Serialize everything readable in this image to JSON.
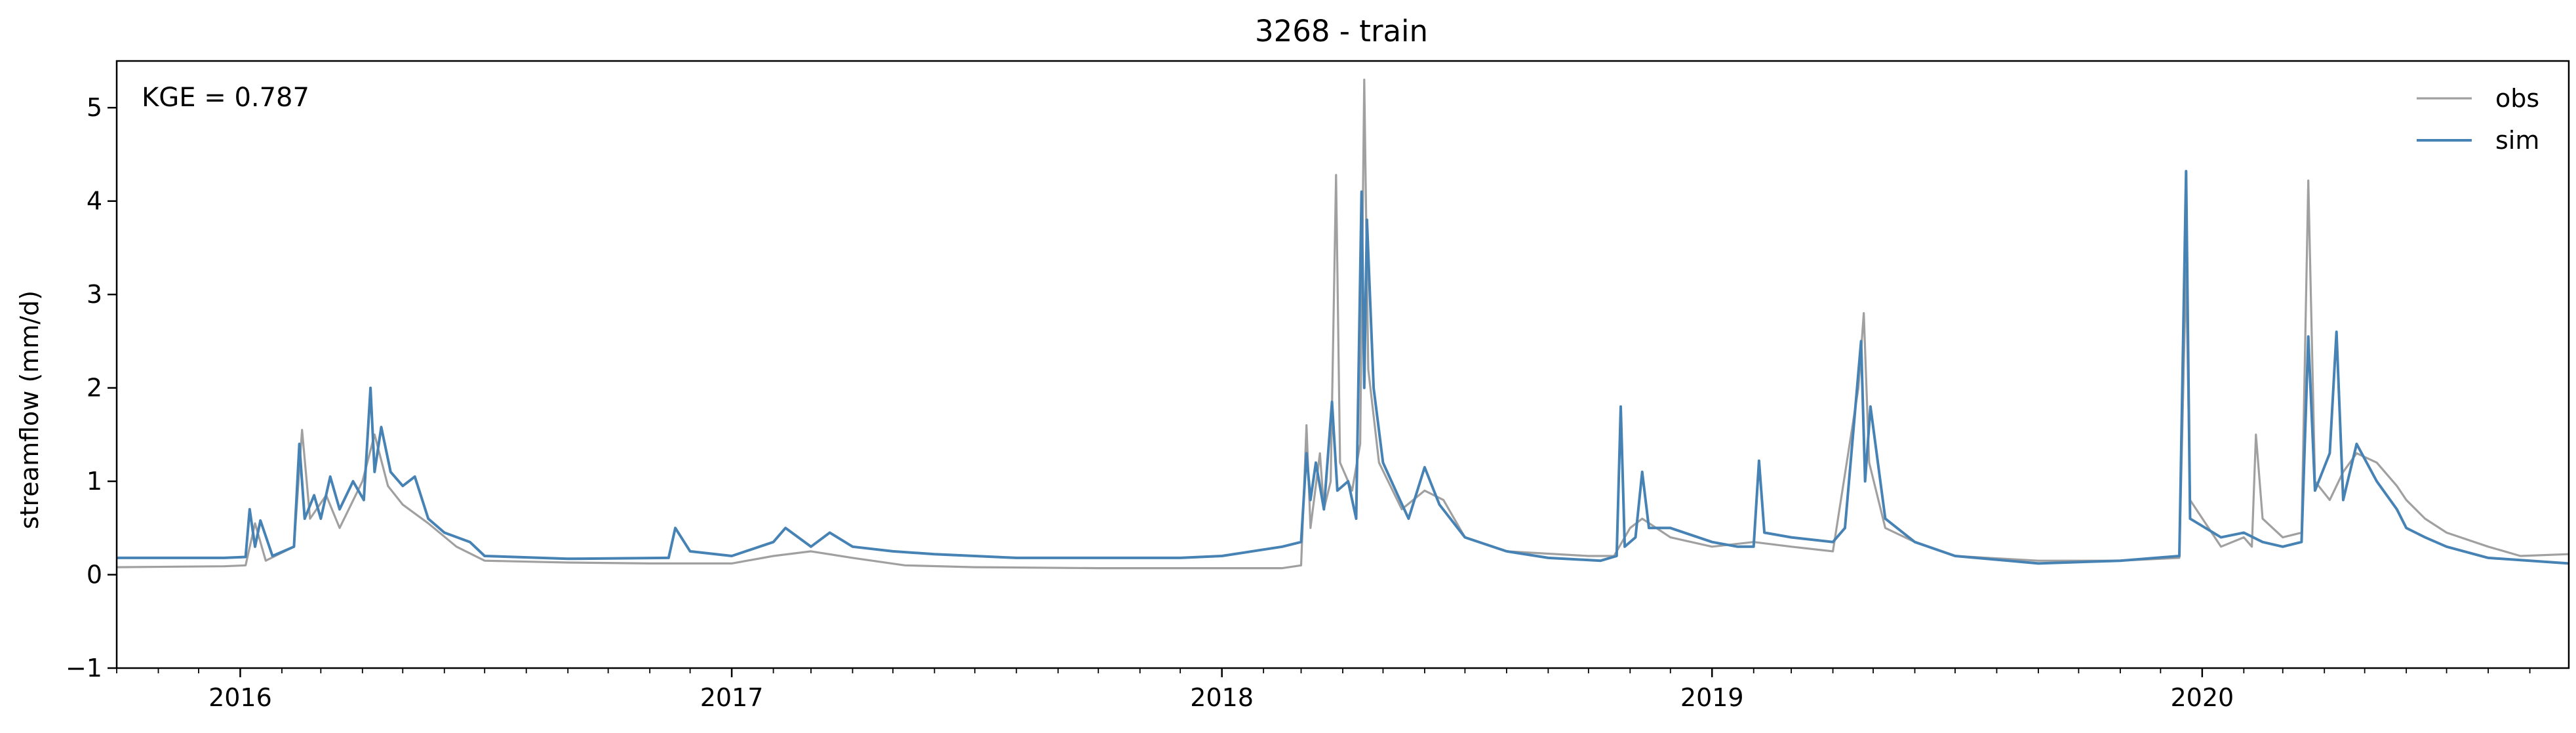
{
  "chart_data": {
    "type": "line",
    "title": "3268 - train",
    "xlabel": "",
    "ylabel": "streamflow (mm/d)",
    "annotation": "KGE = 0.787",
    "xlim": [
      "2015-10-01",
      "2020-09-30"
    ],
    "ylim": [
      -1,
      5.5
    ],
    "x_ticks": [
      {
        "date": "2016-01-01",
        "label": "2016"
      },
      {
        "date": "2017-01-01",
        "label": "2017"
      },
      {
        "date": "2018-01-01",
        "label": "2018"
      },
      {
        "date": "2019-01-01",
        "label": "2019"
      },
      {
        "date": "2020-01-01",
        "label": "2020"
      }
    ],
    "y_ticks": [
      -1,
      0,
      1,
      2,
      3,
      4,
      5
    ],
    "grid": false,
    "legend": {
      "placement": "top-right",
      "entries": [
        "obs",
        "sim"
      ]
    },
    "series": [
      {
        "name": "obs",
        "color": "#a0a0a0",
        "points": [
          [
            "2015-10-01",
            0.08
          ],
          [
            "2015-12-20",
            0.09
          ],
          [
            "2016-01-05",
            0.1
          ],
          [
            "2016-01-12",
            0.55
          ],
          [
            "2016-01-20",
            0.15
          ],
          [
            "2016-02-10",
            0.3
          ],
          [
            "2016-02-16",
            1.55
          ],
          [
            "2016-02-22",
            0.6
          ],
          [
            "2016-03-05",
            0.85
          ],
          [
            "2016-03-15",
            0.5
          ],
          [
            "2016-04-01",
            1.0
          ],
          [
            "2016-04-10",
            1.5
          ],
          [
            "2016-04-20",
            0.95
          ],
          [
            "2016-05-01",
            0.75
          ],
          [
            "2016-05-20",
            0.55
          ],
          [
            "2016-06-10",
            0.3
          ],
          [
            "2016-07-01",
            0.15
          ],
          [
            "2016-09-01",
            0.13
          ],
          [
            "2016-11-01",
            0.12
          ],
          [
            "2017-01-01",
            0.12
          ],
          [
            "2017-02-01",
            0.2
          ],
          [
            "2017-03-01",
            0.25
          ],
          [
            "2017-04-01",
            0.18
          ],
          [
            "2017-05-10",
            0.1
          ],
          [
            "2017-07-01",
            0.08
          ],
          [
            "2017-10-01",
            0.07
          ],
          [
            "2017-12-01",
            0.07
          ],
          [
            "2018-01-01",
            0.07
          ],
          [
            "2018-02-15",
            0.07
          ],
          [
            "2018-03-01",
            0.1
          ],
          [
            "2018-03-05",
            1.6
          ],
          [
            "2018-03-08",
            0.5
          ],
          [
            "2018-03-15",
            1.3
          ],
          [
            "2018-03-18",
            0.7
          ],
          [
            "2018-03-23",
            1.0
          ],
          [
            "2018-03-27",
            4.28
          ],
          [
            "2018-03-30",
            1.2
          ],
          [
            "2018-04-08",
            0.9
          ],
          [
            "2018-04-14",
            1.4
          ],
          [
            "2018-04-17",
            5.3
          ],
          [
            "2018-04-20",
            2.2
          ],
          [
            "2018-04-28",
            1.2
          ],
          [
            "2018-05-15",
            0.7
          ],
          [
            "2018-06-01",
            0.9
          ],
          [
            "2018-06-15",
            0.8
          ],
          [
            "2018-07-01",
            0.4
          ],
          [
            "2018-08-01",
            0.25
          ],
          [
            "2018-10-01",
            0.2
          ],
          [
            "2018-10-20",
            0.2
          ],
          [
            "2018-11-01",
            0.5
          ],
          [
            "2018-11-10",
            0.6
          ],
          [
            "2018-12-01",
            0.4
          ],
          [
            "2019-01-01",
            0.3
          ],
          [
            "2019-02-01",
            0.35
          ],
          [
            "2019-03-01",
            0.3
          ],
          [
            "2019-04-01",
            0.25
          ],
          [
            "2019-04-20",
            2.0
          ],
          [
            "2019-04-24",
            2.8
          ],
          [
            "2019-04-28",
            1.2
          ],
          [
            "2019-05-10",
            0.5
          ],
          [
            "2019-06-01",
            0.35
          ],
          [
            "2019-07-01",
            0.2
          ],
          [
            "2019-09-01",
            0.15
          ],
          [
            "2019-11-01",
            0.15
          ],
          [
            "2019-12-15",
            0.18
          ],
          [
            "2019-12-20",
            3.3
          ],
          [
            "2019-12-23",
            0.8
          ],
          [
            "2020-01-15",
            0.3
          ],
          [
            "2020-02-01",
            0.4
          ],
          [
            "2020-02-07",
            0.3
          ],
          [
            "2020-02-10",
            1.5
          ],
          [
            "2020-02-15",
            0.6
          ],
          [
            "2020-03-01",
            0.4
          ],
          [
            "2020-03-15",
            0.45
          ],
          [
            "2020-03-20",
            4.22
          ],
          [
            "2020-03-25",
            1.0
          ],
          [
            "2020-04-05",
            0.8
          ],
          [
            "2020-04-15",
            1.1
          ],
          [
            "2020-04-25",
            1.3
          ],
          [
            "2020-05-10",
            1.2
          ],
          [
            "2020-05-25",
            0.95
          ],
          [
            "2020-06-01",
            0.8
          ],
          [
            "2020-06-15",
            0.6
          ],
          [
            "2020-07-01",
            0.45
          ],
          [
            "2020-08-01",
            0.3
          ],
          [
            "2020-08-25",
            0.2
          ],
          [
            "2020-09-30",
            0.22
          ]
        ]
      },
      {
        "name": "sim",
        "color": "#4682b4",
        "points": [
          [
            "2015-10-01",
            0.18
          ],
          [
            "2015-12-20",
            0.18
          ],
          [
            "2016-01-05",
            0.19
          ],
          [
            "2016-01-08",
            0.7
          ],
          [
            "2016-01-12",
            0.3
          ],
          [
            "2016-01-16",
            0.58
          ],
          [
            "2016-01-25",
            0.2
          ],
          [
            "2016-02-10",
            0.3
          ],
          [
            "2016-02-14",
            1.4
          ],
          [
            "2016-02-18",
            0.6
          ],
          [
            "2016-02-25",
            0.85
          ],
          [
            "2016-03-01",
            0.6
          ],
          [
            "2016-03-08",
            1.05
          ],
          [
            "2016-03-15",
            0.7
          ],
          [
            "2016-03-25",
            1.0
          ],
          [
            "2016-04-02",
            0.8
          ],
          [
            "2016-04-07",
            2.0
          ],
          [
            "2016-04-10",
            1.1
          ],
          [
            "2016-04-15",
            1.58
          ],
          [
            "2016-04-22",
            1.1
          ],
          [
            "2016-05-01",
            0.95
          ],
          [
            "2016-05-10",
            1.05
          ],
          [
            "2016-05-20",
            0.6
          ],
          [
            "2016-06-01",
            0.45
          ],
          [
            "2016-06-20",
            0.35
          ],
          [
            "2016-07-01",
            0.2
          ],
          [
            "2016-09-01",
            0.17
          ],
          [
            "2016-11-15",
            0.18
          ],
          [
            "2016-11-20",
            0.5
          ],
          [
            "2016-12-01",
            0.25
          ],
          [
            "2017-01-01",
            0.2
          ],
          [
            "2017-02-01",
            0.35
          ],
          [
            "2017-02-10",
            0.5
          ],
          [
            "2017-03-01",
            0.3
          ],
          [
            "2017-03-15",
            0.45
          ],
          [
            "2017-04-01",
            0.3
          ],
          [
            "2017-05-01",
            0.25
          ],
          [
            "2017-06-01",
            0.22
          ],
          [
            "2017-08-01",
            0.18
          ],
          [
            "2017-10-01",
            0.18
          ],
          [
            "2017-12-01",
            0.18
          ],
          [
            "2018-01-01",
            0.2
          ],
          [
            "2018-02-15",
            0.3
          ],
          [
            "2018-03-01",
            0.35
          ],
          [
            "2018-03-05",
            1.3
          ],
          [
            "2018-03-08",
            0.8
          ],
          [
            "2018-03-12",
            1.2
          ],
          [
            "2018-03-18",
            0.7
          ],
          [
            "2018-03-24",
            1.85
          ],
          [
            "2018-03-28",
            0.9
          ],
          [
            "2018-04-05",
            1.0
          ],
          [
            "2018-04-11",
            0.6
          ],
          [
            "2018-04-15",
            4.1
          ],
          [
            "2018-04-17",
            2.0
          ],
          [
            "2018-04-19",
            3.8
          ],
          [
            "2018-04-24",
            2.0
          ],
          [
            "2018-05-01",
            1.2
          ],
          [
            "2018-05-12",
            0.85
          ],
          [
            "2018-05-20",
            0.6
          ],
          [
            "2018-06-01",
            1.15
          ],
          [
            "2018-06-12",
            0.75
          ],
          [
            "2018-07-01",
            0.4
          ],
          [
            "2018-08-01",
            0.25
          ],
          [
            "2018-09-01",
            0.18
          ],
          [
            "2018-10-10",
            0.15
          ],
          [
            "2018-10-22",
            0.2
          ],
          [
            "2018-10-25",
            1.8
          ],
          [
            "2018-10-28",
            0.3
          ],
          [
            "2018-11-05",
            0.4
          ],
          [
            "2018-11-10",
            1.1
          ],
          [
            "2018-11-15",
            0.5
          ],
          [
            "2018-12-01",
            0.5
          ],
          [
            "2019-01-01",
            0.35
          ],
          [
            "2019-01-20",
            0.3
          ],
          [
            "2019-02-01",
            0.3
          ],
          [
            "2019-02-05",
            1.22
          ],
          [
            "2019-02-09",
            0.45
          ],
          [
            "2019-03-01",
            0.4
          ],
          [
            "2019-04-01",
            0.35
          ],
          [
            "2019-04-10",
            0.5
          ],
          [
            "2019-04-22",
            2.5
          ],
          [
            "2019-04-25",
            1.0
          ],
          [
            "2019-04-29",
            1.8
          ],
          [
            "2019-05-10",
            0.6
          ],
          [
            "2019-06-01",
            0.35
          ],
          [
            "2019-07-01",
            0.2
          ],
          [
            "2019-09-01",
            0.12
          ],
          [
            "2019-11-01",
            0.15
          ],
          [
            "2019-12-15",
            0.2
          ],
          [
            "2019-12-20",
            4.32
          ],
          [
            "2019-12-23",
            0.6
          ],
          [
            "2020-01-15",
            0.4
          ],
          [
            "2020-02-01",
            0.45
          ],
          [
            "2020-02-15",
            0.35
          ],
          [
            "2020-03-01",
            0.3
          ],
          [
            "2020-03-15",
            0.35
          ],
          [
            "2020-03-20",
            2.55
          ],
          [
            "2020-03-25",
            0.9
          ],
          [
            "2020-04-05",
            1.3
          ],
          [
            "2020-04-10",
            2.6
          ],
          [
            "2020-04-15",
            0.8
          ],
          [
            "2020-04-25",
            1.4
          ],
          [
            "2020-05-10",
            1.0
          ],
          [
            "2020-05-25",
            0.7
          ],
          [
            "2020-06-01",
            0.5
          ],
          [
            "2020-06-15",
            0.4
          ],
          [
            "2020-07-01",
            0.3
          ],
          [
            "2020-08-01",
            0.18
          ],
          [
            "2020-09-30",
            0.12
          ]
        ]
      }
    ]
  }
}
